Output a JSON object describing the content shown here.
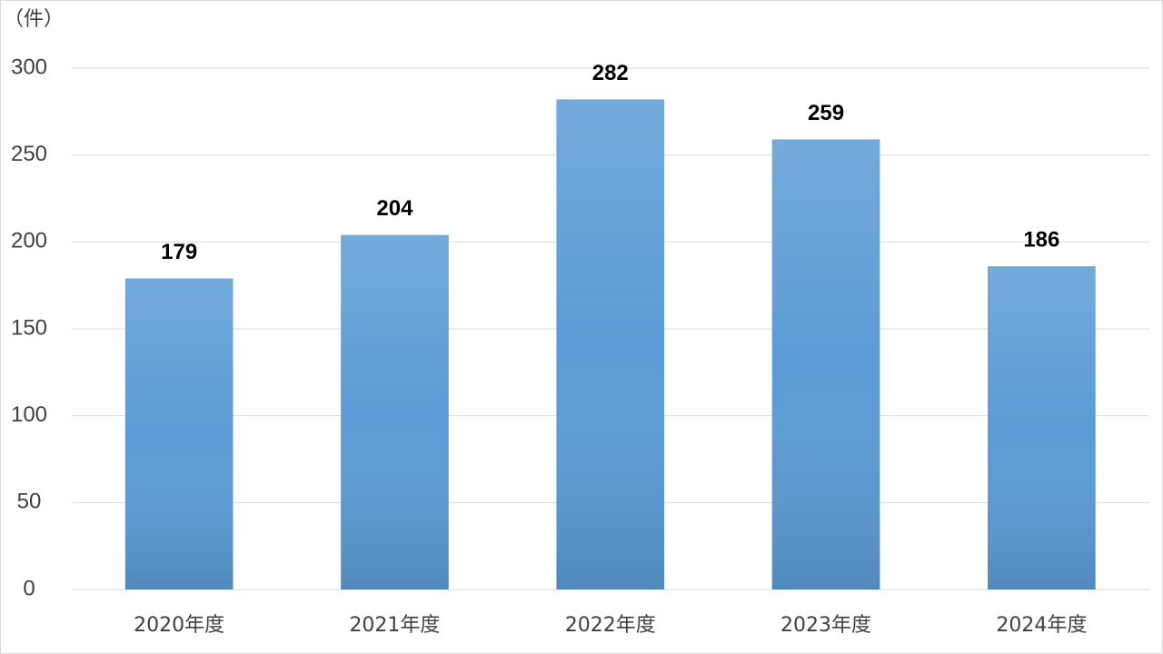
{
  "chart_data": {
    "type": "bar",
    "y_label": "（件）",
    "categories": [
      "2020年度",
      "2021年度",
      "2022年度",
      "2023年度",
      "2024年度"
    ],
    "values": [
      179,
      204,
      282,
      259,
      186
    ],
    "color": "#5b9bd5",
    "ylim": [
      0,
      300
    ],
    "yticks": [
      0,
      50,
      100,
      150,
      200,
      250,
      300
    ],
    "grid": true
  }
}
